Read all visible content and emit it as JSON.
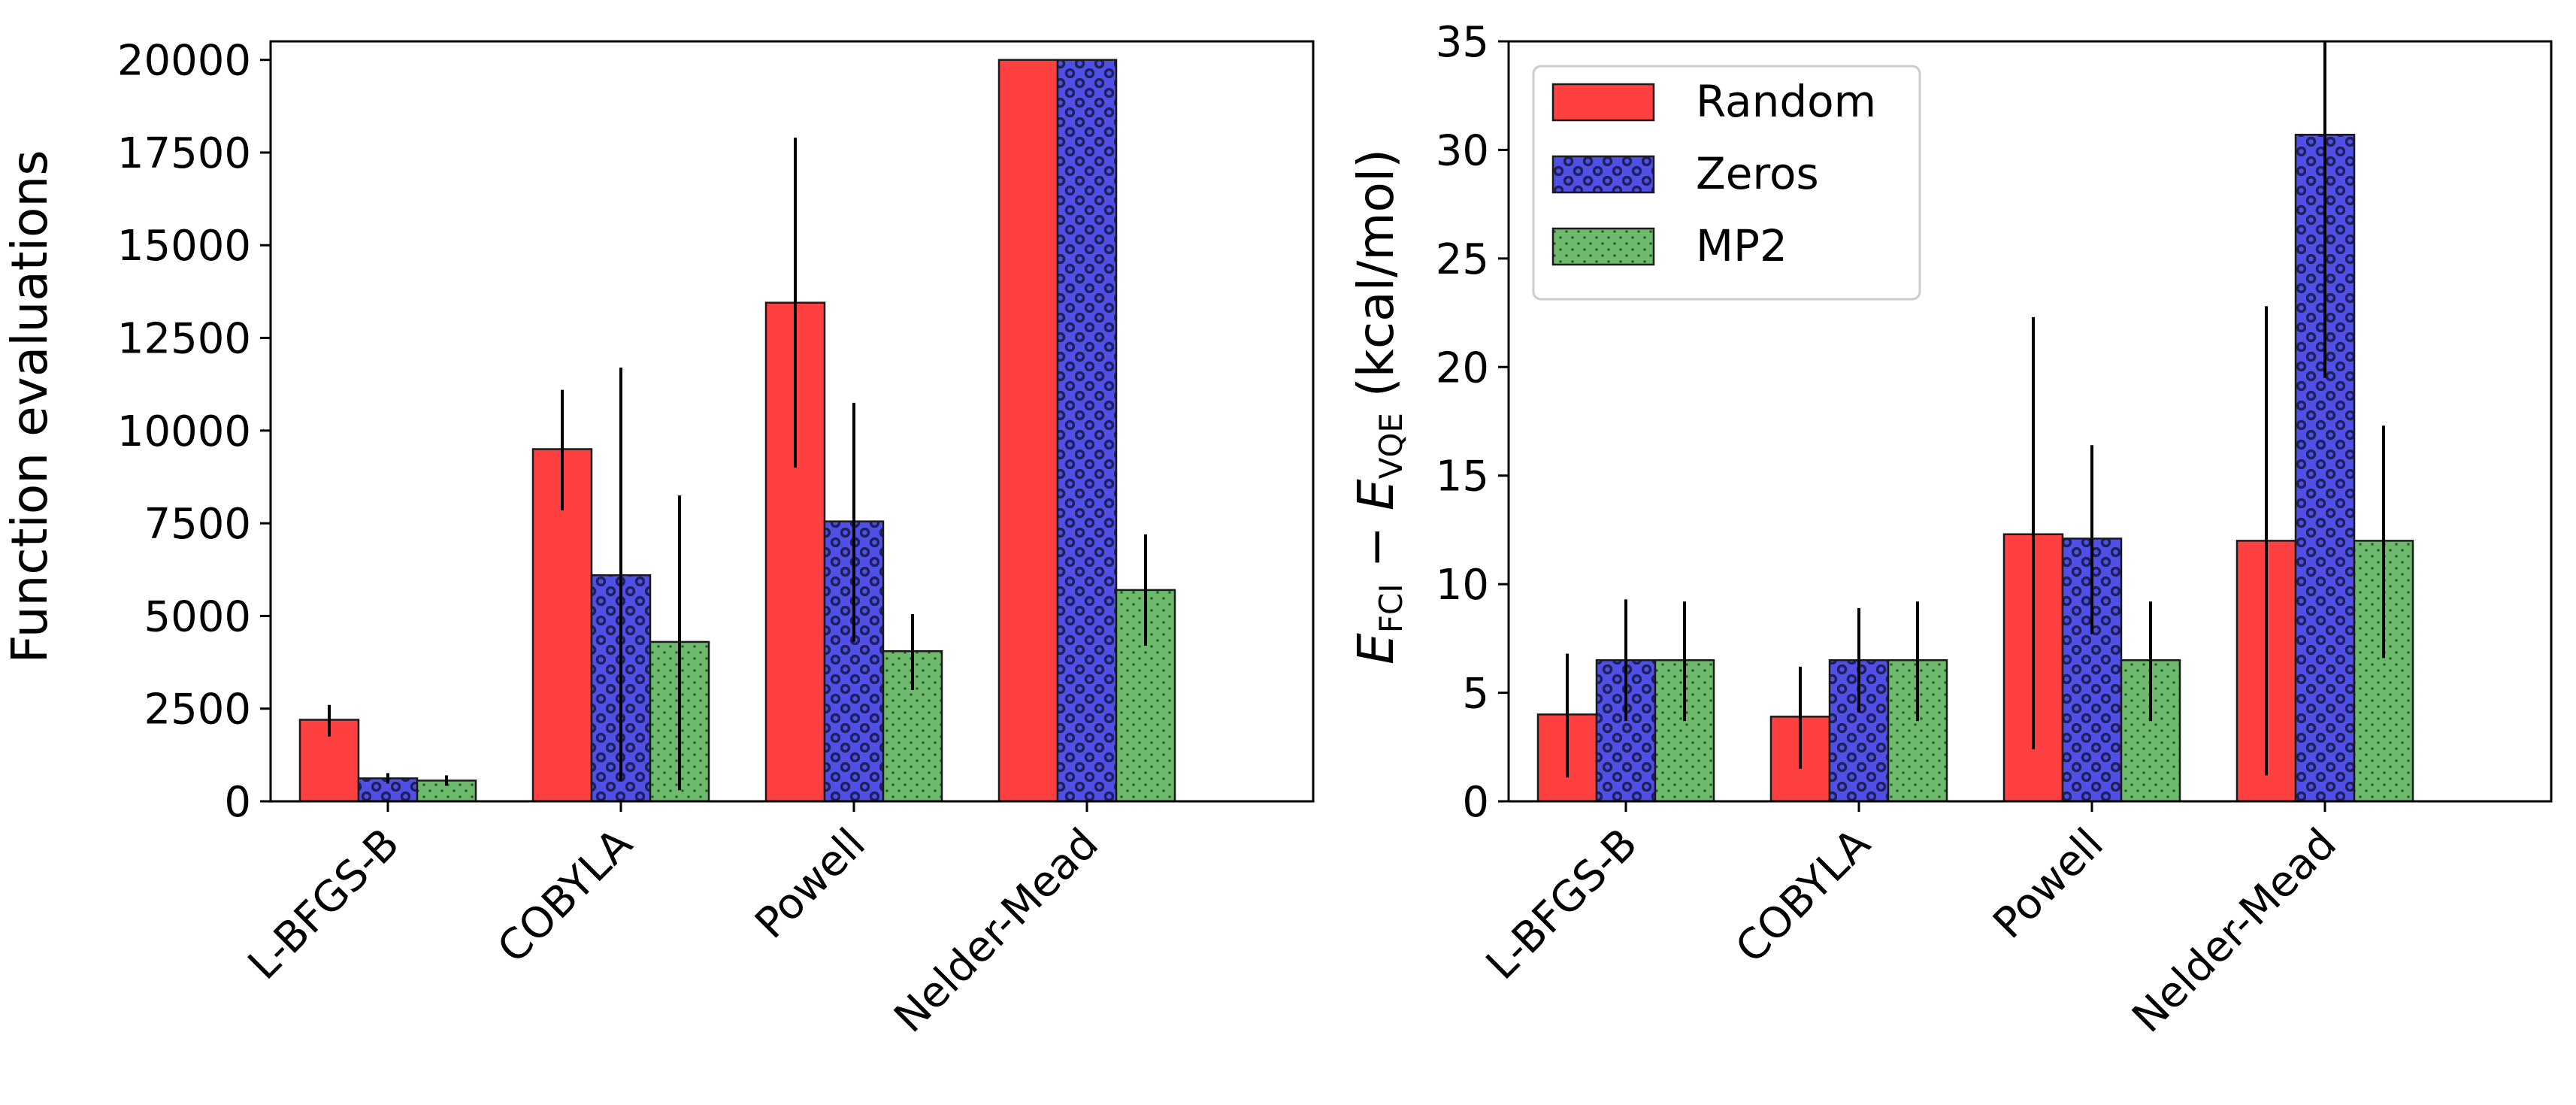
{
  "colors": {
    "Random": "#ff4040",
    "Zeros": "#5050e6",
    "MP2": "#6dba6d",
    "Zeros_hatch": "#1f1f5c",
    "MP2_hatch": "#2d5a2d"
  },
  "chart_data": [
    {
      "type": "bar",
      "categories": [
        "L-BFGS-B",
        "COBYLA",
        "Powell",
        "Nelder-Mead"
      ],
      "ylabel": "Function evaluations",
      "ylim": [
        0,
        20500
      ],
      "yticks": [
        0,
        2500,
        5000,
        7500,
        10000,
        12500,
        15000,
        17500,
        20000
      ],
      "ytick_labels": [
        "0",
        "2500",
        "5000",
        "7500",
        "10000",
        "12500",
        "15000",
        "17500",
        "20000"
      ],
      "series": [
        {
          "name": "Random",
          "values": [
            2200,
            9500,
            13450,
            20000
          ],
          "err_low": [
            1750,
            7850,
            9000,
            20000
          ],
          "err_high": [
            2600,
            11100,
            17900,
            20000
          ]
        },
        {
          "name": "Zeros",
          "values": [
            620,
            6100,
            7550,
            20000
          ],
          "err_low": [
            480,
            550,
            4300,
            20000
          ],
          "err_high": [
            760,
            11700,
            10750,
            20000
          ]
        },
        {
          "name": "MP2",
          "values": [
            560,
            4300,
            4050,
            5700
          ],
          "err_low": [
            420,
            300,
            3000,
            4200
          ],
          "err_high": [
            700,
            8250,
            5050,
            7200
          ]
        }
      ],
      "grid": false,
      "legend": null
    },
    {
      "type": "bar",
      "categories": [
        "L-BFGS-B",
        "COBYLA",
        "Powell",
        "Nelder-Mead"
      ],
      "ylabel": "E_FCI − E_VQE (kcal/mol)",
      "ylabel_parts": {
        "e1": "E",
        "sub1": "FCI",
        "minus": " − ",
        "e2": "E",
        "sub2": "VQE",
        "unit": " (kcal/mol)"
      },
      "ylim": [
        0,
        35
      ],
      "yticks": [
        0,
        5,
        10,
        15,
        20,
        25,
        30,
        35
      ],
      "ytick_labels": [
        "0",
        "5",
        "10",
        "15",
        "20",
        "25",
        "30",
        "35"
      ],
      "series": [
        {
          "name": "Random",
          "values": [
            4.0,
            3.9,
            12.3,
            12.0
          ],
          "err_low": [
            1.1,
            1.5,
            2.4,
            1.2
          ],
          "err_high": [
            6.8,
            6.2,
            22.3,
            22.8
          ]
        },
        {
          "name": "Zeros",
          "values": [
            6.5,
            6.5,
            12.1,
            30.7
          ],
          "err_low": [
            3.7,
            4.1,
            7.7,
            19.5
          ],
          "err_high": [
            9.3,
            8.9,
            16.4,
            35.0
          ]
        },
        {
          "name": "MP2",
          "values": [
            6.5,
            6.5,
            6.5,
            12.0
          ],
          "err_low": [
            3.7,
            3.7,
            3.7,
            6.6
          ],
          "err_high": [
            9.2,
            9.2,
            9.2,
            17.3
          ]
        }
      ],
      "grid": false,
      "legend": "top-left"
    }
  ]
}
